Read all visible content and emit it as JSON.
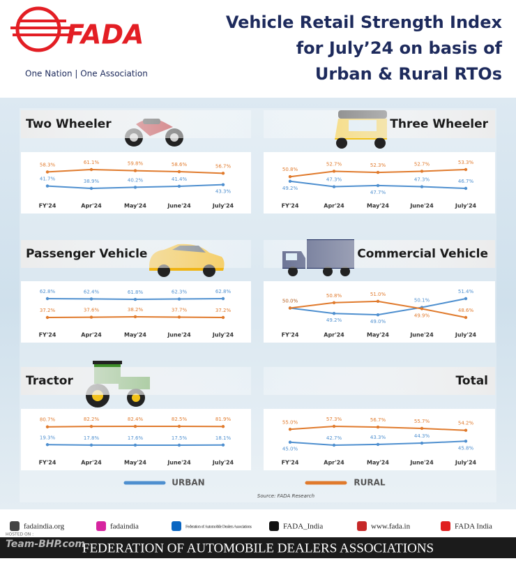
{
  "header": {
    "logo": "FADA",
    "tagline": "One Nation | One Association",
    "title_lines": [
      "Vehicle Retail Strength Index",
      "for July’24 on basis of",
      "Urban & Rural RTOs"
    ]
  },
  "legend": [
    {
      "name": "URBAN",
      "color": "#4e8fcf"
    },
    {
      "name": "RURAL",
      "color": "#e07a2c"
    }
  ],
  "chart_data": [
    {
      "type": "line",
      "title": "Two Wheeler",
      "categories": [
        "FY'24",
        "Apr'24",
        "May'24",
        "June'24",
        "July'24"
      ],
      "series": [
        {
          "values": [
            41.7,
            38.9,
            40.2,
            41.4,
            43.3
          ],
          "value_labels": [
            "41.7%",
            "38.9%",
            "40.2%",
            "41.4%",
            "43.3%"
          ]
        },
        {
          "values": [
            58.3,
            61.1,
            59.8,
            58.6,
            56.7
          ],
          "value_labels": [
            "58.3%",
            "61.1%",
            "59.8%",
            "58.6%",
            "56.7%"
          ]
        }
      ]
    },
    {
      "type": "line",
      "title": "Three Wheeler",
      "categories": [
        "FY'24",
        "Apr'24",
        "May'24",
        "June'24",
        "July'24"
      ],
      "series": [
        {
          "values": [
            49.2,
            47.3,
            47.7,
            47.3,
            46.7
          ],
          "value_labels": [
            "49.2%",
            "47.3%",
            "47.7%",
            "47.3%",
            "46.7%"
          ]
        },
        {
          "values": [
            50.8,
            52.7,
            52.3,
            52.7,
            53.3
          ],
          "value_labels": [
            "50.8%",
            "52.7%",
            "52.3%",
            "52.7%",
            "53.3%"
          ]
        }
      ]
    },
    {
      "type": "line",
      "title": "Passenger Vehicle",
      "categories": [
        "FY'24",
        "Apr'24",
        "May'24",
        "June'24",
        "July'24"
      ],
      "series": [
        {
          "values": [
            62.8,
            62.4,
            61.8,
            62.3,
            62.8
          ],
          "value_labels": [
            "62.8%",
            "62.4%",
            "61.8%",
            "62.3%",
            "62.8%"
          ]
        },
        {
          "values": [
            37.2,
            37.6,
            38.2,
            37.7,
            37.2
          ],
          "value_labels": [
            "37.2%",
            "37.6%",
            "38.2%",
            "37.7%",
            "37.2%"
          ]
        }
      ]
    },
    {
      "type": "line",
      "title": "Commercial Vehicle",
      "categories": [
        "FY'24",
        "Apr'24",
        "May'24",
        "June'24",
        "July'24"
      ],
      "series": [
        {
          "values": [
            50.0,
            49.2,
            49.0,
            50.1,
            51.4
          ],
          "value_labels": [
            "50.0%",
            "49.2%",
            "49.0%",
            "50.1%",
            "51.4%"
          ]
        },
        {
          "values": [
            50.0,
            50.8,
            51.0,
            49.9,
            48.6
          ],
          "value_labels": [
            "50.0%",
            "50.8%",
            "51.0%",
            "49.9%",
            "48.6%"
          ]
        }
      ]
    },
    {
      "type": "line",
      "title": "Tractor",
      "categories": [
        "FY'24",
        "Apr'24",
        "May'24",
        "June'24",
        "July'24"
      ],
      "series": [
        {
          "values": [
            19.3,
            17.8,
            17.6,
            17.5,
            18.1
          ],
          "value_labels": [
            "19.3%",
            "17.8%",
            "17.6%",
            "17.5%",
            "18.1%"
          ]
        },
        {
          "values": [
            80.7,
            82.2,
            82.4,
            82.5,
            81.9
          ],
          "value_labels": [
            "80.7%",
            "82.2%",
            "82.4%",
            "82.5%",
            "81.9%"
          ]
        }
      ]
    },
    {
      "type": "line",
      "title": "Total",
      "categories": [
        "FY'24",
        "Apr'24",
        "May'24",
        "June'24",
        "July'24"
      ],
      "series": [
        {
          "values": [
            45.0,
            42.7,
            43.3,
            44.3,
            45.8
          ],
          "value_labels": [
            "45.0%",
            "42.7%",
            "43.3%",
            "44.3%",
            "45.8%"
          ]
        },
        {
          "values": [
            55.0,
            57.3,
            56.7,
            55.7,
            54.2
          ],
          "value_labels": [
            "55.0%",
            "57.3%",
            "56.7%",
            "55.7%",
            "54.2%"
          ]
        }
      ]
    }
  ],
  "source": "Source: FADA Research",
  "footer": {
    "links": [
      "fadaindia.org",
      "fadaindia",
      "Federation of Automobile Dealers Associations",
      "FADA_India",
      "www.fada.in",
      "FADA India"
    ],
    "banner": "FEDERATION OF AUTOMOBILE DEALERS ASSOCIATIONS",
    "watermark": "Team-BHP.com",
    "hosted": "HOSTED ON :"
  }
}
